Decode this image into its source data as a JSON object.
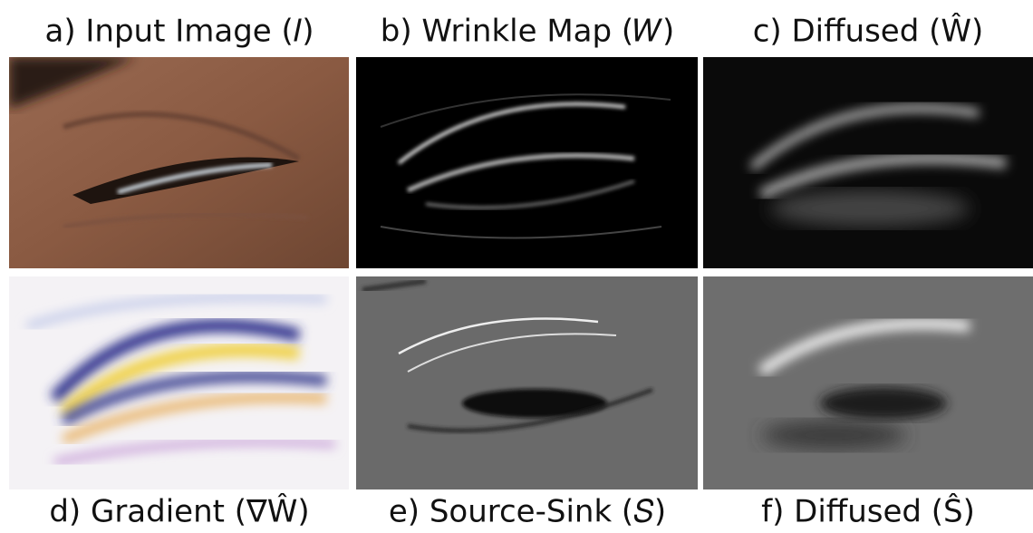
{
  "figure": {
    "top_captions": [
      "a) Input Image (𝐼)",
      "b) Wrinkle Map (𝑊)",
      "c) Diffused (Ŵ)"
    ],
    "bottom_captions": [
      "d) Gradient (∇Ŵ)",
      "e) Source-Sink (𝑆)",
      "f) Diffused (Ŝ)"
    ]
  }
}
